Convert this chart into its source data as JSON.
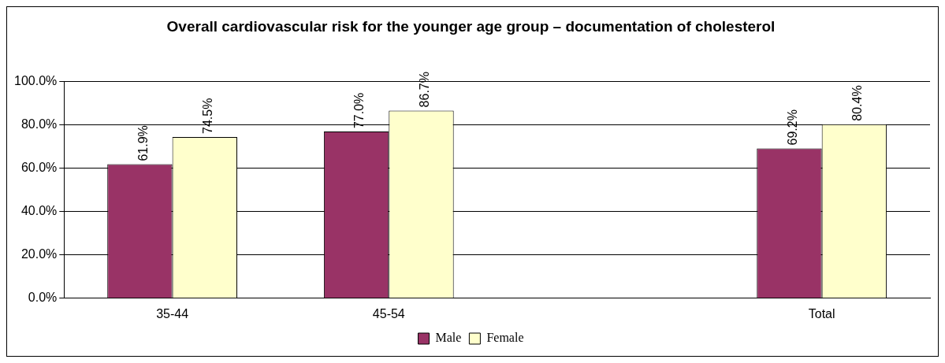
{
  "chart_data": {
    "type": "bar",
    "title": "Overall cardiovascular risk for the younger age group – documentation of cholesterol",
    "categories": [
      "35-44",
      "45-54",
      null,
      "Total"
    ],
    "series": [
      {
        "name": "Male",
        "color": "#993366",
        "values": [
          61.9,
          77.0,
          null,
          69.2
        ],
        "value_labels": [
          "61.9%",
          "77.0%",
          null,
          "69.2%"
        ]
      },
      {
        "name": "Female",
        "color": "#ffffcc",
        "values": [
          74.5,
          86.7,
          null,
          80.4
        ],
        "value_labels": [
          "74.5%",
          "86.7%",
          null,
          "80.4%"
        ]
      }
    ],
    "ylim": [
      0,
      100
    ],
    "yticks": [
      {
        "value": 0,
        "label": "0.0%"
      },
      {
        "value": 20,
        "label": "20.0%"
      },
      {
        "value": 40,
        "label": "40.0%"
      },
      {
        "value": 60,
        "label": "60.0%"
      },
      {
        "value": 80,
        "label": "80.0%"
      },
      {
        "value": 100,
        "label": "100.0%"
      }
    ],
    "grid": "y",
    "legend": "bottom"
  }
}
